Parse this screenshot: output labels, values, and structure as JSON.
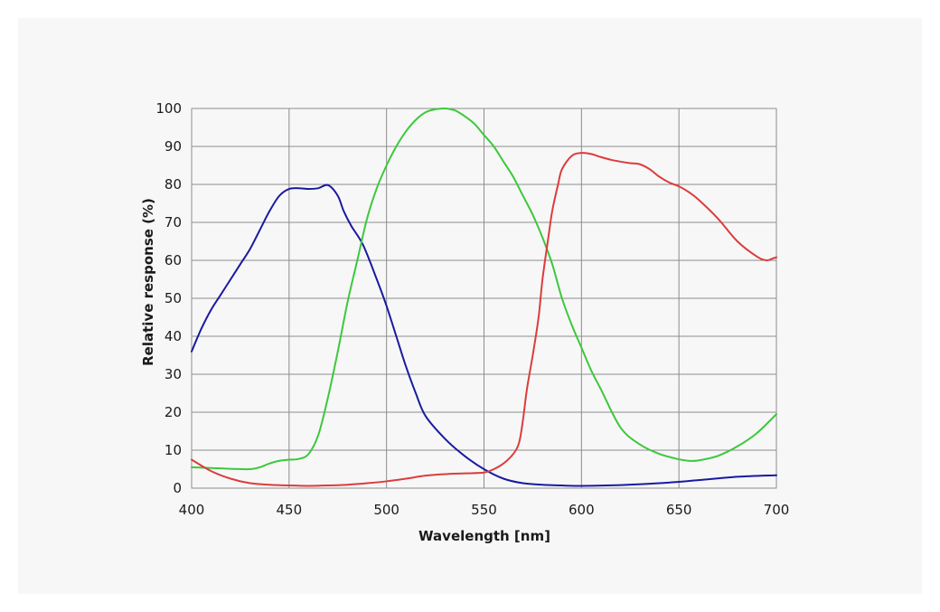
{
  "chart_data": {
    "type": "line",
    "title": "",
    "xlabel": "Wavelength [nm]",
    "ylabel": "Relative response (%)",
    "xlim": [
      400,
      700
    ],
    "ylim": [
      0,
      100
    ],
    "xticks": [
      400,
      450,
      500,
      550,
      600,
      650,
      700
    ],
    "yticks": [
      0,
      10,
      20,
      30,
      40,
      50,
      60,
      70,
      80,
      90,
      100
    ],
    "xtick_labels": [
      "400",
      "450",
      "500",
      "550",
      "600",
      "650",
      "700"
    ],
    "ytick_labels": [
      "0",
      "10",
      "20",
      "30",
      "40",
      "50",
      "60",
      "70",
      "80",
      "90",
      "100"
    ],
    "grid": true,
    "legend": "none",
    "series": [
      {
        "name": "Blue",
        "color": "#1a1aa0",
        "x": [
          400,
          405,
          410,
          415,
          420,
          425,
          430,
          435,
          440,
          445,
          450,
          455,
          460,
          465,
          470,
          475,
          478,
          482,
          488,
          495,
          500,
          505,
          510,
          515,
          520,
          530,
          540,
          550,
          560,
          570,
          580,
          590,
          600,
          620,
          640,
          660,
          680,
          700
        ],
        "y": [
          36,
          42,
          47,
          51,
          55,
          59,
          63,
          68,
          73,
          77,
          78.8,
          79,
          78.8,
          79,
          79.8,
          77,
          73,
          69,
          64,
          55,
          48,
          40,
          32,
          25,
          19,
          13,
          8.5,
          5,
          2.5,
          1.3,
          0.9,
          0.7,
          0.6,
          0.8,
          1.3,
          2.1,
          3,
          3.4
        ]
      },
      {
        "name": "Green",
        "color": "#3cc83c",
        "x": [
          400,
          410,
          420,
          430,
          435,
          440,
          445,
          450,
          455,
          460,
          465,
          470,
          475,
          480,
          485,
          490,
          495,
          500,
          505,
          510,
          515,
          520,
          525,
          530,
          535,
          540,
          545,
          550,
          555,
          560,
          565,
          570,
          575,
          580,
          585,
          590,
          595,
          600,
          605,
          610,
          620,
          630,
          640,
          650,
          655,
          660,
          670,
          680,
          690,
          700
        ],
        "y": [
          5.5,
          5.3,
          5.1,
          5,
          5.5,
          6.5,
          7.2,
          7.5,
          7.7,
          9,
          14,
          24,
          36,
          49,
          60,
          71,
          79,
          85,
          90,
          94,
          97,
          99,
          99.8,
          100,
          99.5,
          98,
          96,
          93,
          90,
          86,
          82,
          77,
          72,
          66,
          59,
          50,
          43,
          37,
          31,
          26,
          16,
          11.5,
          9,
          7.6,
          7.2,
          7.3,
          8.5,
          11,
          14.5,
          19.5
        ]
      },
      {
        "name": "Red",
        "color": "#dc3c3c",
        "x": [
          400,
          410,
          420,
          430,
          440,
          450,
          460,
          470,
          480,
          490,
          500,
          510,
          520,
          530,
          540,
          550,
          555,
          560,
          565,
          568,
          570,
          572,
          575,
          578,
          580,
          583,
          585,
          588,
          590,
          595,
          600,
          605,
          610,
          615,
          620,
          625,
          630,
          635,
          640,
          645,
          650,
          655,
          660,
          670,
          680,
          690,
          695,
          698,
          700
        ],
        "y": [
          7.5,
          4.5,
          2.5,
          1.3,
          0.9,
          0.7,
          0.6,
          0.7,
          0.9,
          1.3,
          1.8,
          2.5,
          3.3,
          3.7,
          3.9,
          4.1,
          5,
          6.5,
          9,
          12,
          18,
          26,
          35,
          45,
          55,
          66,
          73,
          80,
          84,
          87.5,
          88.3,
          88,
          87.2,
          86.5,
          86,
          85.6,
          85.3,
          84,
          82,
          80.5,
          79.5,
          78,
          76,
          71,
          65,
          61,
          60,
          60.5,
          60.8
        ]
      }
    ]
  }
}
